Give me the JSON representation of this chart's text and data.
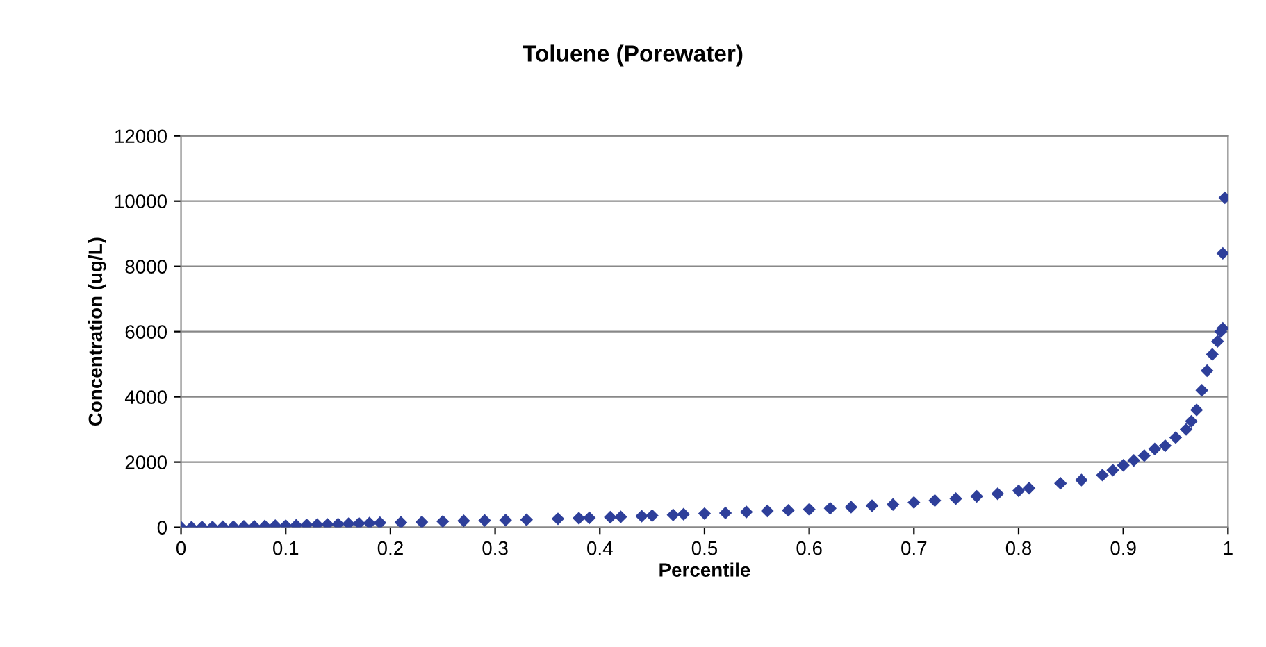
{
  "chart_data": {
    "type": "scatter",
    "title": "Toluene (Porewater)",
    "xlabel": "Percentile",
    "ylabel": "Concentration (ug/L)",
    "xlim": [
      0,
      1
    ],
    "xticks": [
      0,
      0.1,
      0.2,
      0.3,
      0.4,
      0.5,
      0.6,
      0.7,
      0.8,
      0.9,
      1
    ],
    "ylim": [
      0,
      12000
    ],
    "yticks": [
      0,
      2000,
      4000,
      6000,
      8000,
      10000,
      12000
    ],
    "grid": "y",
    "marker": "diamond",
    "legend": false,
    "series": [
      {
        "color": "#2e3f9a",
        "x": [
          0,
          0.01,
          0.02,
          0.03,
          0.04,
          0.05,
          0.06,
          0.07,
          0.08,
          0.09,
          0.1,
          0.11,
          0.12,
          0.13,
          0.14,
          0.15,
          0.16,
          0.17,
          0.18,
          0.19,
          0.21,
          0.23,
          0.25,
          0.27,
          0.29,
          0.31,
          0.33,
          0.36,
          0.38,
          0.39,
          0.41,
          0.42,
          0.44,
          0.45,
          0.47,
          0.48,
          0.5,
          0.52,
          0.54,
          0.56,
          0.58,
          0.6,
          0.62,
          0.64,
          0.66,
          0.68,
          0.7,
          0.72,
          0.74,
          0.76,
          0.78,
          0.8,
          0.81,
          0.84,
          0.86,
          0.88,
          0.89,
          0.9,
          0.91,
          0.92,
          0.93,
          0.94,
          0.95,
          0.96,
          0.965,
          0.97,
          0.975,
          0.98,
          0.985,
          0.99,
          0.993,
          0.995,
          0.995,
          0.997
        ],
        "values": [
          0,
          0,
          10,
          10,
          20,
          20,
          30,
          30,
          40,
          50,
          50,
          60,
          70,
          80,
          90,
          100,
          110,
          120,
          130,
          140,
          150,
          160,
          180,
          200,
          210,
          220,
          230,
          260,
          280,
          290,
          310,
          320,
          340,
          360,
          380,
          400,
          420,
          440,
          470,
          500,
          520,
          550,
          580,
          620,
          660,
          700,
          760,
          820,
          880,
          950,
          1030,
          1120,
          1200,
          1350,
          1450,
          1600,
          1750,
          1900,
          2050,
          2200,
          2400,
          2500,
          2750,
          3000,
          3250,
          3600,
          4200,
          4800,
          5300,
          5700,
          6000,
          6100,
          8400,
          10100
        ]
      }
    ]
  }
}
